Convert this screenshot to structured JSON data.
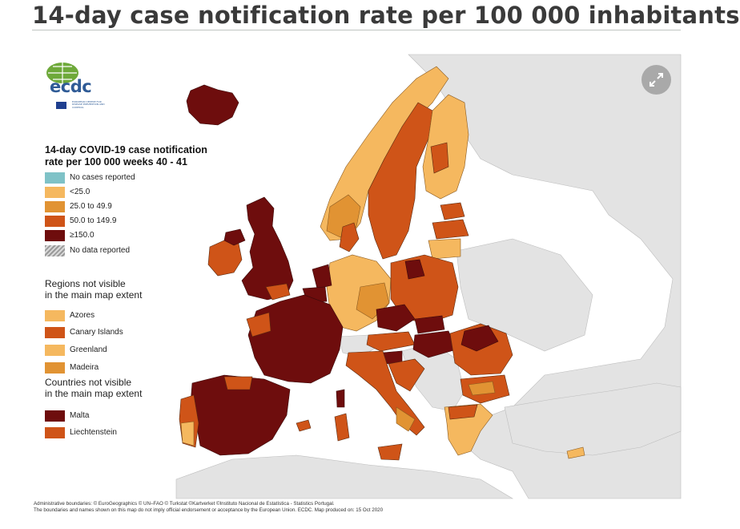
{
  "title": "14-day case notification rate per 100 000 inhabitants",
  "logo": {
    "name": "ecdc",
    "subtitle": "EUROPEAN CENTRE FOR DISEASE PREVENTION AND CONTROL"
  },
  "legend": {
    "title": "14-day COVID-19 case notification rate per 100 000 weeks 40 - 41",
    "title_line1": "14-day COVID-19 case notification",
    "title_line2": "rate per 100 000 weeks 40 - 41",
    "classes": [
      {
        "label": "No cases reported",
        "color": "#7fc2c7"
      },
      {
        "label": "<25.0",
        "color": "#f5b85f"
      },
      {
        "label": "25.0 to 49.9",
        "color": "#e19333"
      },
      {
        "label": "50.0 to 149.9",
        "color": "#cf5418"
      },
      {
        "label": "≥150.0",
        "color": "#6e0d0d"
      },
      {
        "label": "No data reported",
        "color": "hatched"
      }
    ]
  },
  "regions_section": {
    "title_line1": "Regions not visible",
    "title_line2": "in the main map extent",
    "items": [
      {
        "label": "Azores",
        "color": "#f5b85f"
      },
      {
        "label": "Canary Islands",
        "color": "#cf5418"
      },
      {
        "label": "Greenland",
        "color": "#f5b85f"
      },
      {
        "label": "Madeira",
        "color": "#e19333"
      }
    ]
  },
  "countries_section": {
    "title_line1": "Countries not visible",
    "title_line2": "in the main map extent",
    "items": [
      {
        "label": "Malta",
        "color": "#6e0d0d"
      },
      {
        "label": "Liechtenstein",
        "color": "#cf5418"
      }
    ]
  },
  "credits": {
    "line1": "Administrative boundaries: © EuroGeographics © UN–FAO © Turkstat ©Kartverket ©Instituto Nacional de Estatística - Statistics Portugal.",
    "line2": "The boundaries and names shown on this map do not imply official endorsement or acceptance by the European Union. ECDC. Map produced on: 15 Oct 2020"
  },
  "map_colors": {
    "sea": "#ffffff",
    "non_eu_land": "#e3e3e3",
    "border": "#5a2a10"
  },
  "icons": {
    "expand": "expand-arrows-icon"
  }
}
